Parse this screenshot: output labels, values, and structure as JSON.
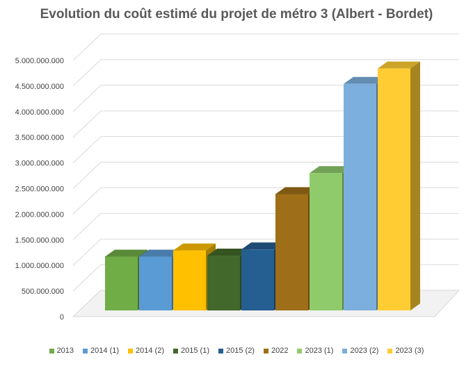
{
  "chart_data": {
    "type": "bar",
    "title": "Evolution du coût estimé du projet de métro 3 (Albert - Bordet)",
    "xlabel": "",
    "ylabel": "",
    "ylim": [
      0,
      5000000000
    ],
    "y_ticks": [
      0,
      500000000,
      1000000000,
      1500000000,
      2000000000,
      2500000000,
      3000000000,
      3500000000,
      4000000000,
      4500000000,
      5000000000
    ],
    "y_tick_labels": [
      "0",
      "500.000.000",
      "1.000.000.000",
      "1.500.000.000",
      "2.000.000.000",
      "2.500.000.000",
      "3.000.000.000",
      "3.500.000.000",
      "4.000.000.000",
      "4.500.000.000",
      "5.000.000.000"
    ],
    "grid": true,
    "style": "3d-clustered-column",
    "legend_position": "bottom",
    "categories": [
      "2013",
      "2014 (1)",
      "2014 (2)",
      "2015 (1)",
      "2015 (2)",
      "2022",
      "2023 (1)",
      "2023 (2)",
      "2023 (3)"
    ],
    "values": [
      1050000000,
      1050000000,
      1170000000,
      1070000000,
      1190000000,
      2270000000,
      2680000000,
      4420000000,
      4720000000
    ],
    "colors": [
      "#70ad47",
      "#5b9bd5",
      "#ffc000",
      "#43682b",
      "#255e91",
      "#9e6f18",
      "#8fcb6b",
      "#7cafdd",
      "#ffcd33"
    ]
  }
}
